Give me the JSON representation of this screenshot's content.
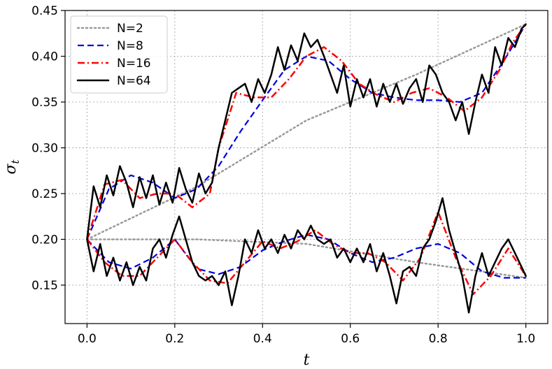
{
  "chart_data": {
    "type": "line",
    "xlabel": "t",
    "ylabel": "σ_t",
    "xlim": [
      -0.05,
      1.05
    ],
    "ylim": [
      0.108,
      0.45
    ],
    "xticks": [
      0.0,
      0.2,
      0.4,
      0.6,
      0.8,
      1.0
    ],
    "xtick_labels": [
      "0.0",
      "0.2",
      "0.4",
      "0.6",
      "0.8",
      "1.0"
    ],
    "yticks": [
      0.15,
      0.2,
      0.25,
      0.3,
      0.35,
      0.4,
      0.45
    ],
    "ytick_labels": [
      "0.15",
      "0.20",
      "0.25",
      "0.30",
      "0.35",
      "0.40",
      "0.45"
    ],
    "grid": true,
    "legend_position": "top-left",
    "series": [
      {
        "name": "N=2",
        "color": "#999999",
        "style": "dotted",
        "paths": [
          {
            "x": [
              0.0,
              0.25,
              0.5,
              0.75,
              1.0
            ],
            "y": [
              0.2,
              0.2575,
              0.33,
              0.38,
              0.435
            ]
          },
          {
            "x": [
              0.0,
              0.25,
              0.5,
              0.75,
              1.0
            ],
            "y": [
              0.2,
              0.2,
              0.195,
              0.175,
              0.158
            ]
          }
        ]
      },
      {
        "name": "N=8",
        "color": "#0000dd",
        "style": "dashed",
        "paths": [
          {
            "x": [
              0.0,
              0.05,
              0.1,
              0.15,
              0.2,
              0.25,
              0.3,
              0.35,
              0.4,
              0.45,
              0.5,
              0.55,
              0.6,
              0.65,
              0.7,
              0.75,
              0.8,
              0.85,
              0.9,
              0.95,
              1.0
            ],
            "y": [
              0.2,
              0.255,
              0.27,
              0.262,
              0.245,
              0.255,
              0.28,
              0.318,
              0.352,
              0.385,
              0.4,
              0.395,
              0.375,
              0.36,
              0.355,
              0.352,
              0.352,
              0.35,
              0.36,
              0.395,
              0.435
            ]
          },
          {
            "x": [
              0.0,
              0.05,
              0.1,
              0.15,
              0.2,
              0.25,
              0.3,
              0.35,
              0.4,
              0.45,
              0.5,
              0.55,
              0.6,
              0.65,
              0.7,
              0.75,
              0.8,
              0.85,
              0.9,
              0.95,
              1.0
            ],
            "y": [
              0.2,
              0.175,
              0.168,
              0.18,
              0.2,
              0.168,
              0.162,
              0.17,
              0.188,
              0.198,
              0.205,
              0.2,
              0.185,
              0.175,
              0.18,
              0.19,
              0.195,
              0.185,
              0.165,
              0.158,
              0.158
            ]
          }
        ]
      },
      {
        "name": "N=16",
        "color": "#ff0000",
        "style": "dashdot",
        "paths": [
          {
            "x": [
              0.0,
              0.04,
              0.08,
              0.12,
              0.16,
              0.2,
              0.24,
              0.28,
              0.3,
              0.34,
              0.38,
              0.42,
              0.46,
              0.5,
              0.54,
              0.58,
              0.62,
              0.66,
              0.7,
              0.74,
              0.78,
              0.82,
              0.86,
              0.9,
              0.94,
              0.97,
              1.0
            ],
            "y": [
              0.2,
              0.26,
              0.265,
              0.245,
              0.25,
              0.25,
              0.235,
              0.25,
              0.3,
              0.36,
              0.355,
              0.355,
              0.375,
              0.4,
              0.41,
              0.395,
              0.37,
              0.358,
              0.35,
              0.36,
              0.365,
              0.355,
              0.34,
              0.355,
              0.385,
              0.415,
              0.435
            ]
          },
          {
            "x": [
              0.0,
              0.04,
              0.08,
              0.12,
              0.16,
              0.2,
              0.24,
              0.28,
              0.32,
              0.36,
              0.4,
              0.44,
              0.48,
              0.52,
              0.56,
              0.6,
              0.64,
              0.68,
              0.72,
              0.76,
              0.8,
              0.84,
              0.88,
              0.92,
              0.96,
              1.0
            ],
            "y": [
              0.2,
              0.175,
              0.16,
              0.16,
              0.18,
              0.2,
              0.175,
              0.155,
              0.152,
              0.175,
              0.198,
              0.19,
              0.198,
              0.21,
              0.195,
              0.185,
              0.185,
              0.175,
              0.155,
              0.18,
              0.23,
              0.18,
              0.14,
              0.16,
              0.19,
              0.16
            ]
          }
        ]
      },
      {
        "name": "N=64",
        "color": "#000000",
        "style": "solid",
        "paths": [
          {
            "x": [
              0.0,
              0.015,
              0.03,
              0.045,
              0.06,
              0.075,
              0.09,
              0.105,
              0.12,
              0.135,
              0.15,
              0.165,
              0.18,
              0.195,
              0.21,
              0.225,
              0.24,
              0.255,
              0.27,
              0.285,
              0.3,
              0.315,
              0.33,
              0.345,
              0.36,
              0.375,
              0.39,
              0.405,
              0.42,
              0.435,
              0.45,
              0.465,
              0.48,
              0.495,
              0.51,
              0.525,
              0.54,
              0.555,
              0.57,
              0.585,
              0.6,
              0.615,
              0.63,
              0.645,
              0.66,
              0.675,
              0.69,
              0.705,
              0.72,
              0.735,
              0.75,
              0.765,
              0.78,
              0.795,
              0.81,
              0.825,
              0.84,
              0.855,
              0.87,
              0.885,
              0.9,
              0.915,
              0.93,
              0.945,
              0.96,
              0.975,
              0.99,
              1.0
            ],
            "y": [
              0.2,
              0.258,
              0.235,
              0.27,
              0.248,
              0.28,
              0.262,
              0.235,
              0.268,
              0.245,
              0.27,
              0.238,
              0.262,
              0.24,
              0.278,
              0.255,
              0.24,
              0.272,
              0.25,
              0.262,
              0.3,
              0.33,
              0.36,
              0.365,
              0.37,
              0.35,
              0.375,
              0.36,
              0.38,
              0.41,
              0.385,
              0.412,
              0.395,
              0.425,
              0.41,
              0.418,
              0.4,
              0.38,
              0.36,
              0.39,
              0.345,
              0.375,
              0.355,
              0.375,
              0.345,
              0.37,
              0.35,
              0.37,
              0.348,
              0.365,
              0.375,
              0.35,
              0.39,
              0.38,
              0.36,
              0.35,
              0.33,
              0.35,
              0.315,
              0.35,
              0.38,
              0.36,
              0.41,
              0.39,
              0.42,
              0.41,
              0.43,
              0.435
            ]
          },
          {
            "x": [
              0.0,
              0.015,
              0.03,
              0.045,
              0.06,
              0.075,
              0.09,
              0.105,
              0.12,
              0.135,
              0.15,
              0.165,
              0.18,
              0.195,
              0.21,
              0.225,
              0.24,
              0.255,
              0.27,
              0.285,
              0.3,
              0.315,
              0.33,
              0.345,
              0.36,
              0.375,
              0.39,
              0.405,
              0.42,
              0.435,
              0.45,
              0.465,
              0.48,
              0.495,
              0.51,
              0.525,
              0.54,
              0.555,
              0.57,
              0.585,
              0.6,
              0.615,
              0.63,
              0.645,
              0.66,
              0.675,
              0.69,
              0.705,
              0.72,
              0.735,
              0.75,
              0.765,
              0.78,
              0.795,
              0.81,
              0.825,
              0.84,
              0.855,
              0.87,
              0.885,
              0.9,
              0.915,
              0.93,
              0.945,
              0.96,
              0.975,
              0.99,
              1.0
            ],
            "y": [
              0.2,
              0.165,
              0.195,
              0.16,
              0.18,
              0.155,
              0.175,
              0.15,
              0.17,
              0.155,
              0.19,
              0.2,
              0.18,
              0.205,
              0.225,
              0.2,
              0.175,
              0.16,
              0.155,
              0.16,
              0.15,
              0.165,
              0.128,
              0.16,
              0.2,
              0.185,
              0.21,
              0.19,
              0.2,
              0.185,
              0.205,
              0.19,
              0.21,
              0.2,
              0.215,
              0.2,
              0.195,
              0.2,
              0.18,
              0.19,
              0.175,
              0.19,
              0.175,
              0.195,
              0.165,
              0.185,
              0.16,
              0.13,
              0.165,
              0.17,
              0.16,
              0.19,
              0.2,
              0.22,
              0.245,
              0.21,
              0.185,
              0.16,
              0.12,
              0.16,
              0.185,
              0.16,
              0.175,
              0.19,
              0.2,
              0.185,
              0.17,
              0.16
            ]
          }
        ]
      }
    ]
  }
}
